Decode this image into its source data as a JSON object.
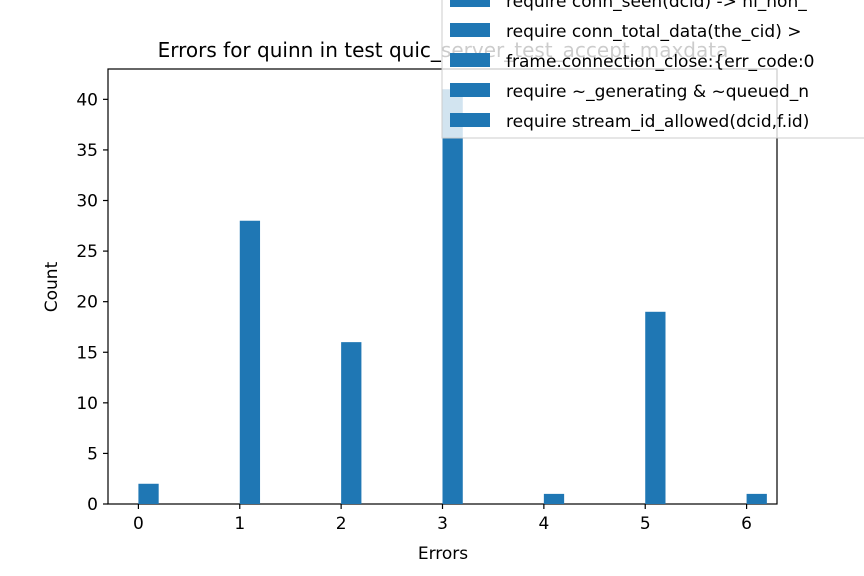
{
  "chart_data": {
    "type": "bar",
    "title": "Errors for quinn in test quic_server_test_accept_maxdata",
    "xlabel": "Errors",
    "ylabel": "Count",
    "x": [
      0,
      1,
      2,
      3,
      4,
      5,
      6
    ],
    "values": [
      2,
      28,
      16,
      41,
      1,
      19,
      1
    ],
    "xlim": [
      -0.3,
      6.3
    ],
    "ylim": [
      0,
      43
    ],
    "xticks": [
      "0",
      "1",
      "2",
      "3",
      "4",
      "5",
      "6"
    ],
    "yticks": [
      "0",
      "5",
      "10",
      "15",
      "20",
      "25",
      "30",
      "35",
      "40"
    ],
    "grid": false,
    "bar_color": "#1f77b4",
    "legend_position": "top-right",
    "legend": [
      "require conn_seen(dcid) -> hi_non_",
      "require conn_total_data(the_cid) >",
      "frame.connection_close:{err_code:0",
      "require ~_generating & ~queued_n",
      "require stream_id_allowed(dcid,f.id)"
    ]
  }
}
